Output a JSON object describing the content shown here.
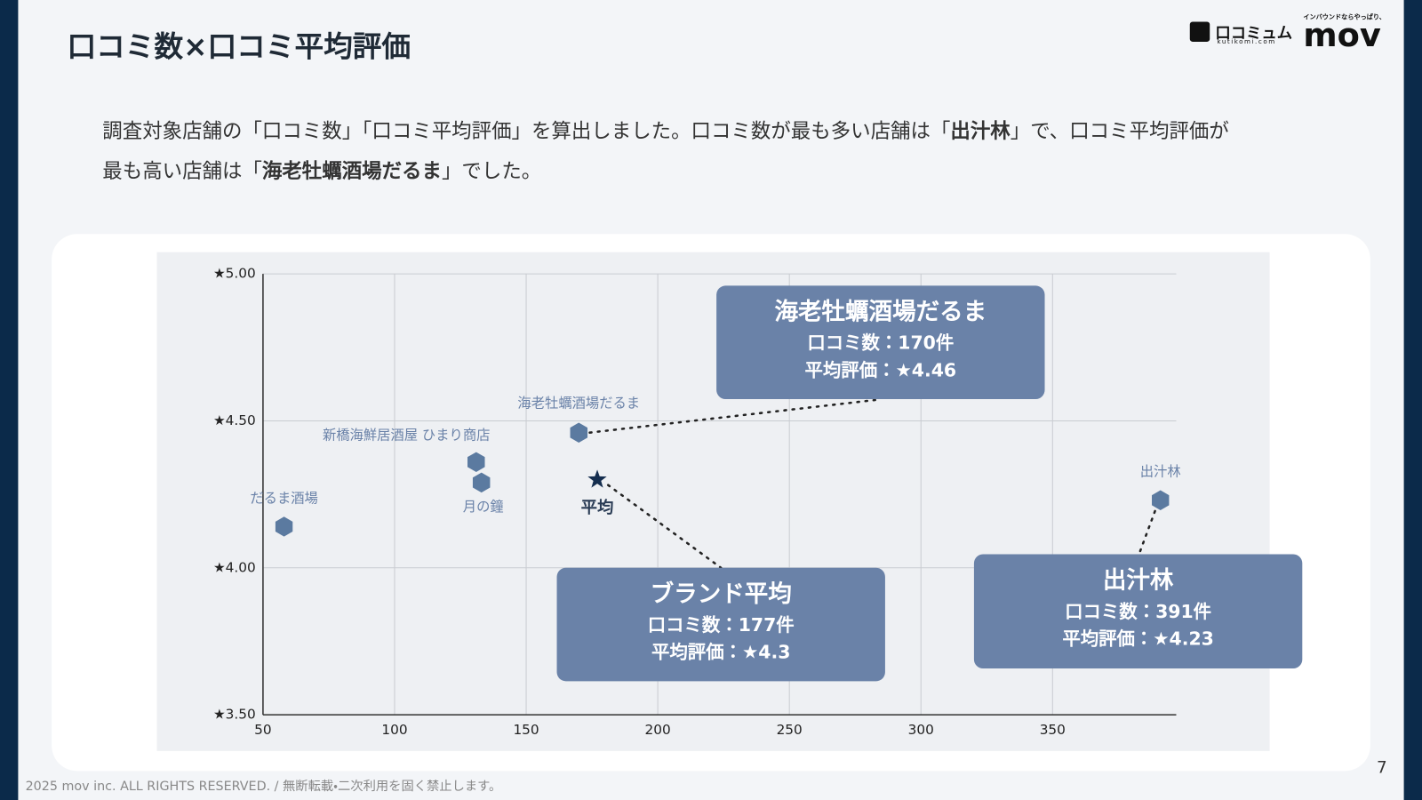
{
  "title": "口コミ数×口コミ平均評価",
  "description": [
    {
      "text": "調査対象店舗の「口コミ数」「口コミ平均評価」を算出しました。口コミ数が最も多い店舗は「",
      "bold": false
    },
    {
      "text": "出汁林",
      "bold": true
    },
    {
      "text": "」で、口コミ平均評価が最も高い店舗は「",
      "bold": false
    },
    {
      "text": "海老牡蠣酒場だるま",
      "bold": true
    },
    {
      "text": "」でした。",
      "bold": false
    }
  ],
  "logos": {
    "kutikomi": "口コミュム",
    "kutikomi_sub": "kutikomi.com",
    "mov_tagline": "インバウンドならやっぱり、",
    "mov": "mov"
  },
  "footer": "2025 mov inc. ALL RIGHTS RESERVED. / 無断転載・二次利用を固く禁止します。",
  "page_number": "7",
  "chart_data": {
    "type": "scatter",
    "labels": [
      "だるま酒場",
      "新橋海鮮居酒屋 ひまり商店",
      "月の鐘",
      "海老牡蠣酒場だるま",
      "出汁林"
    ],
    "x": [
      58,
      131,
      133,
      170,
      391
    ],
    "values": [
      4.14,
      4.36,
      4.29,
      4.46,
      4.23
    ],
    "color": "#5b7aa0",
    "average": {
      "label": "平均",
      "x": 177,
      "y": 4.3,
      "color": "#152e4f"
    },
    "xlim": [
      50,
      397
    ],
    "xticks": [
      50,
      100,
      150,
      200,
      250,
      300,
      350
    ],
    "ylim": [
      3.5,
      5
    ],
    "yticks": [
      {
        "value": 3.5,
        "label": "★3.50"
      },
      {
        "value": 4,
        "label": "★4.00"
      },
      {
        "value": 4.5,
        "label": "★4.50"
      },
      {
        "value": 5,
        "label": "★5.00"
      }
    ],
    "grid": true,
    "callouts": [
      {
        "title": "海老牡蠣酒場だるま",
        "lines": [
          "口コミ数：170件",
          "平均評価：★4.46"
        ]
      },
      {
        "title": "ブランド平均",
        "lines": [
          "口コミ数：177件",
          "平均評価：★4.3"
        ]
      },
      {
        "title": "出汁林",
        "lines": [
          "口コミ数：391件",
          "平均評価：★4.23"
        ]
      }
    ],
    "callout_color": "#6a82a8"
  }
}
